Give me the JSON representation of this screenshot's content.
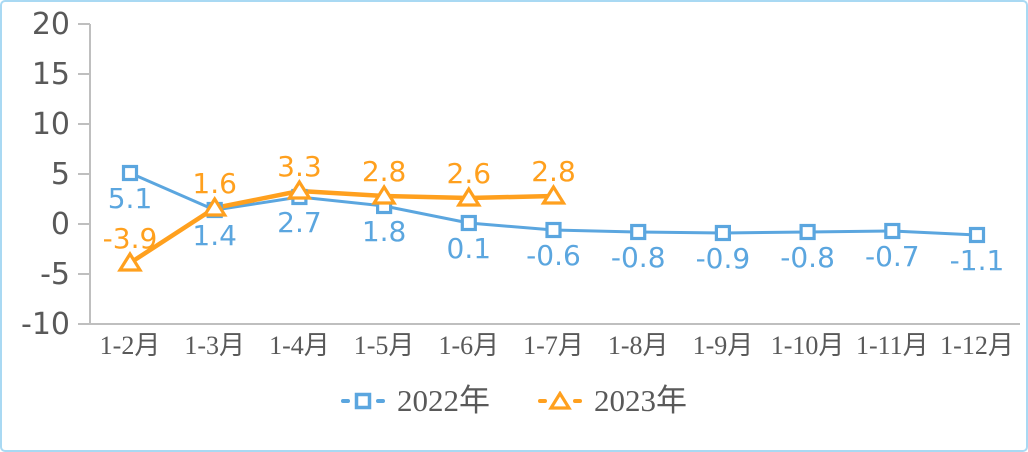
{
  "frame": {
    "border_color": "#a9d9f3",
    "background_color": "#ffffff"
  },
  "chart_data": {
    "type": "line",
    "title": "",
    "categories": [
      "1-2月",
      "1-3月",
      "1-4月",
      "1-5月",
      "1-6月",
      "1-7月",
      "1-8月",
      "1-9月",
      "1-10月",
      "1-11月",
      "1-12月"
    ],
    "series": [
      {
        "name": "2022年",
        "color": "#5ba6df",
        "marker": "square",
        "label_position": "below",
        "values": [
          5.1,
          1.4,
          2.7,
          1.8,
          0.1,
          -0.6,
          -0.8,
          -0.9,
          -0.8,
          -0.7,
          -1.1
        ],
        "labels": [
          "5.1",
          "1.4",
          "2.7",
          "1.8",
          "0.1",
          "-0.6",
          "-0.8",
          "-0.9",
          "-0.8",
          "-0.7",
          "-1.1"
        ]
      },
      {
        "name": "2023年",
        "color": "#ffa01e",
        "marker": "triangle",
        "label_position": "above",
        "values": [
          -3.9,
          1.6,
          3.3,
          2.8,
          2.6,
          2.8
        ],
        "labels": [
          "-3.9",
          "1.6",
          "3.3",
          "2.8",
          "2.6",
          "2.8"
        ]
      }
    ],
    "y_axis": {
      "min": -10,
      "max": 20,
      "tick_step": 5,
      "tick_labels": [
        "20",
        "15",
        "10",
        "5",
        "0",
        "-5",
        "-10"
      ]
    },
    "legend_position": "bottom",
    "grid": false,
    "styles": {
      "axis_line_color": "#bfbfbf",
      "axis_text_color": "#595959",
      "legend_text_color": "#595959"
    }
  }
}
